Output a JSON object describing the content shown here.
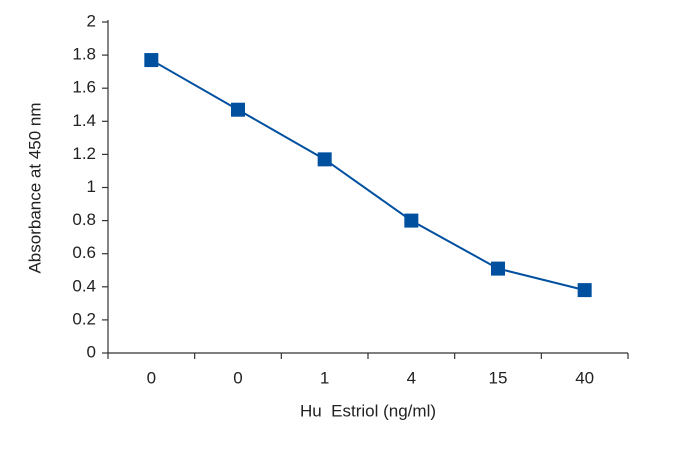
{
  "chart_data": {
    "type": "line",
    "categories": [
      "0",
      "0",
      "1",
      "4",
      "15",
      "40"
    ],
    "values": [
      1.77,
      1.47,
      1.17,
      0.8,
      0.51,
      0.38
    ],
    "color": "#0050a0",
    "ylim": [
      0,
      2
    ],
    "yticks": [
      0,
      0.2,
      0.4,
      0.6,
      0.8,
      1,
      1.2,
      1.4,
      1.6,
      1.8,
      2
    ],
    "xlabel": "Hu  Estriol (ng/ml)",
    "ylabel": "Absorbance at 450 nm"
  }
}
